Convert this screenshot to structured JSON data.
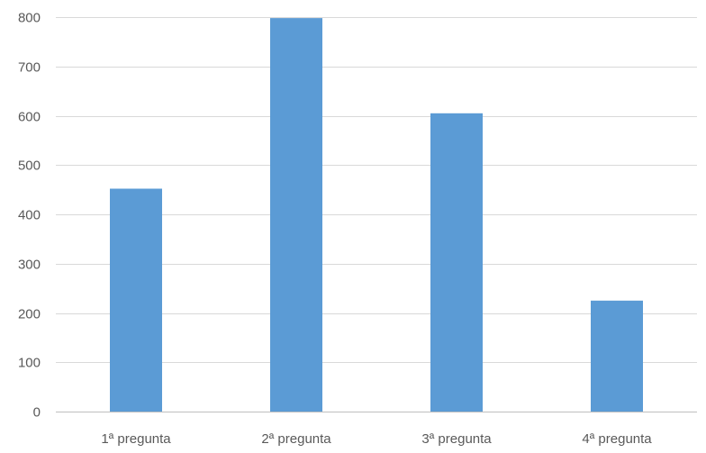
{
  "chart_data": {
    "type": "bar",
    "title": "",
    "xlabel": "",
    "ylabel": "",
    "categories": [
      "1ª pregunta",
      "2ª pregunta",
      "3ª pregunta",
      "4ª pregunta"
    ],
    "values": [
      452,
      798,
      605,
      225
    ],
    "ylim": [
      0,
      800
    ],
    "yticks": [
      0,
      100,
      200,
      300,
      400,
      500,
      600,
      700,
      800
    ],
    "yticklabels": [
      "0",
      "100",
      "200",
      "300",
      "400",
      "500",
      "600",
      "700",
      "800"
    ],
    "grid": true,
    "legend": "none",
    "bar_color": "#5b9bd5"
  }
}
